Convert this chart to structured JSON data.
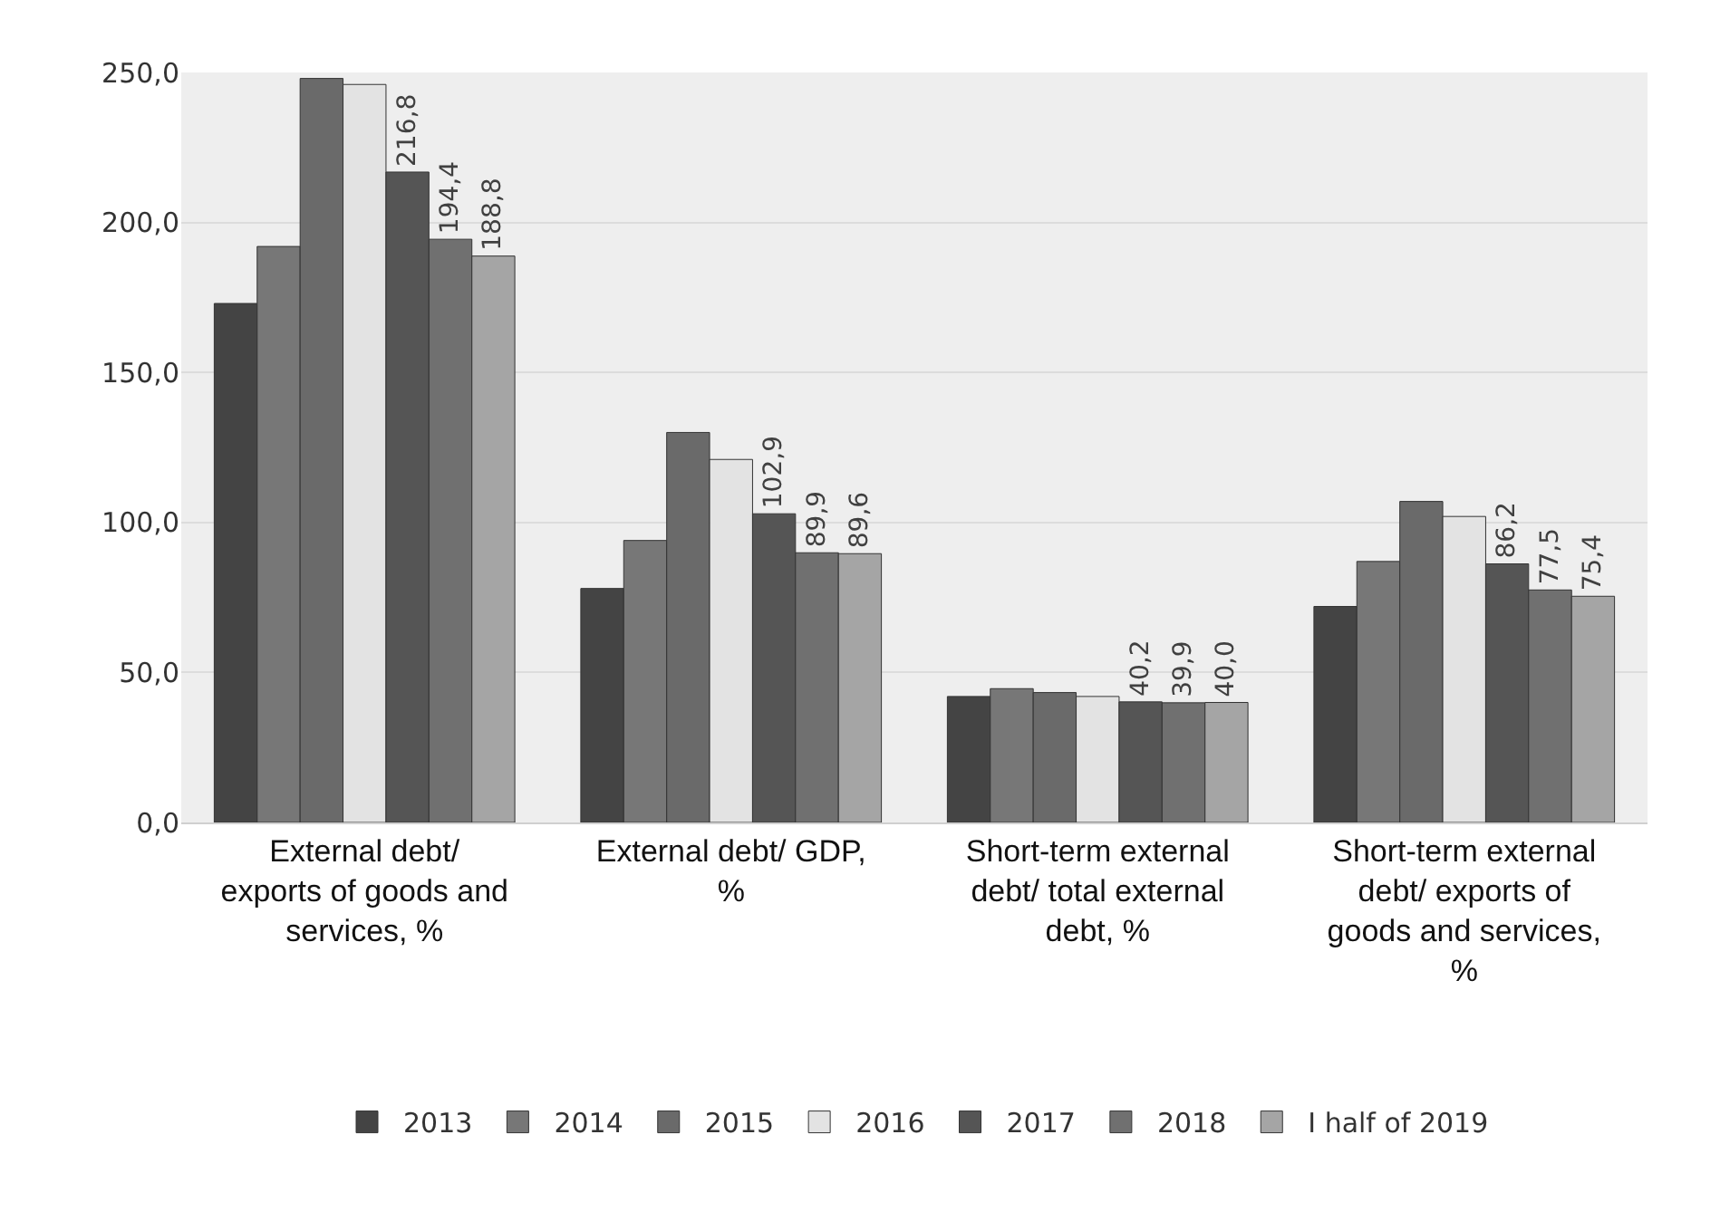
{
  "chart_data": {
    "type": "bar",
    "categories": [
      "External debt/ exports of goods and services, %",
      "External debt/ GDP, %",
      "Short-term external debt/ total external debt, %",
      "Short-term external debt/ exports of goods and services, %"
    ],
    "series": [
      {
        "name": "2013",
        "color": "#444444",
        "values": [
          173,
          78,
          42,
          72
        ]
      },
      {
        "name": "2014",
        "color": "#777777",
        "values": [
          192,
          94,
          44.6,
          87
        ]
      },
      {
        "name": "2015",
        "color": "#6a6a6a",
        "values": [
          248,
          130,
          43.3,
          107
        ]
      },
      {
        "name": "2016",
        "color": "#e3e3e3",
        "values": [
          246,
          121,
          42,
          102
        ]
      },
      {
        "name": "2017",
        "color": "#555555",
        "values": [
          216.8,
          102.9,
          40.2,
          86.2
        ],
        "value_labels": [
          "216,8",
          "102,9",
          "40,2",
          "86,2"
        ]
      },
      {
        "name": "2018",
        "color": "#707070",
        "values": [
          194.4,
          89.9,
          39.9,
          77.5
        ],
        "value_labels": [
          "194,4",
          "89,9",
          "39,9",
          "77,5"
        ]
      },
      {
        "name": "I half of 2019",
        "color": "#a5a5a5",
        "values": [
          188.8,
          89.6,
          40.0,
          75.4
        ],
        "value_labels": [
          "188,8",
          "89,6",
          "40,0",
          "75,4"
        ]
      }
    ],
    "ylim": [
      0,
      250
    ],
    "yticks": [
      {
        "value": 0,
        "label": "0,0"
      },
      {
        "value": 50,
        "label": "50,0"
      },
      {
        "value": 100,
        "label": "100,0"
      },
      {
        "value": 150,
        "label": "150,0"
      },
      {
        "value": 200,
        "label": "200,0"
      },
      {
        "value": 250,
        "label": "250,0"
      }
    ],
    "grid": "y",
    "legend": "bottom"
  }
}
